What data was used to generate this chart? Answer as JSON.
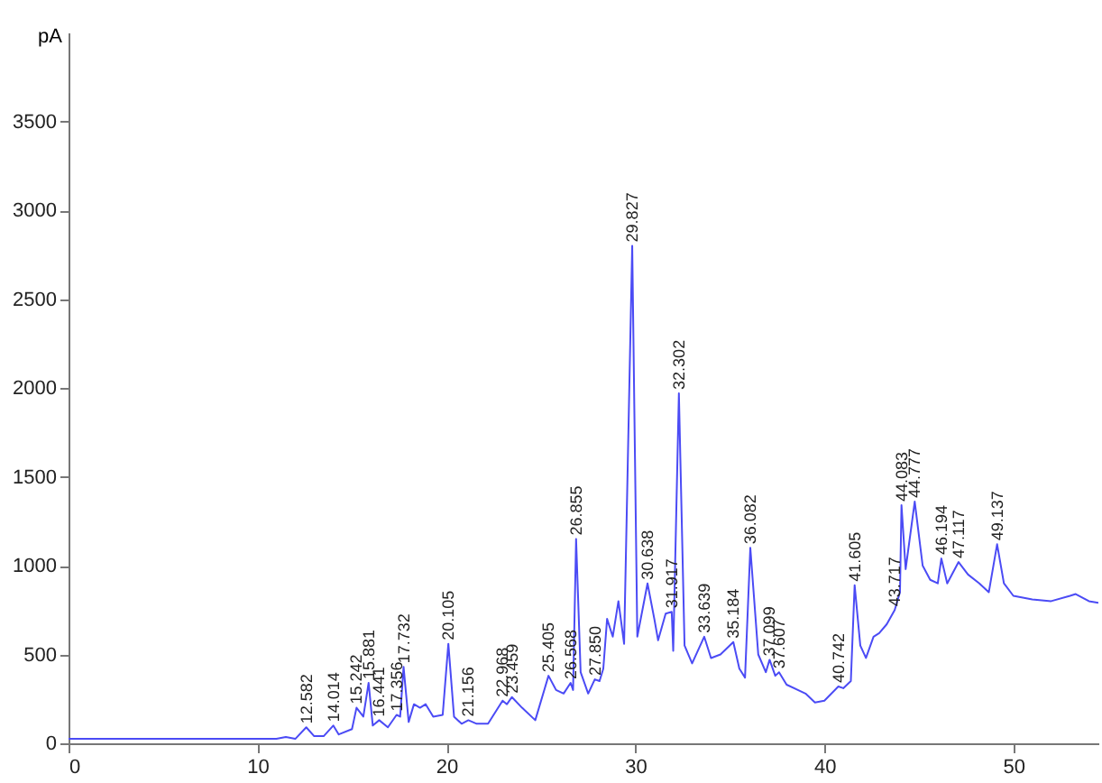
{
  "chart_data": {
    "type": "line",
    "ylabel": "pA",
    "xlim": [
      0,
      54.5
    ],
    "xticks": [
      0,
      10,
      20,
      30,
      40,
      50
    ],
    "ylim": [
      0,
      4000
    ],
    "yticks": [
      0,
      500,
      1000,
      1500,
      2000,
      2500,
      3000,
      3500
    ],
    "grid": false,
    "marker": "none",
    "line_style": "solid",
    "series": [
      {
        "color": "#4b4bf5",
        "x": [
          0,
          11,
          11.5,
          12,
          12.58,
          13,
          13.5,
          14.01,
          14.3,
          15,
          15.24,
          15.6,
          15.88,
          16.1,
          16.44,
          16.9,
          17.36,
          17.55,
          17.73,
          18,
          18.28,
          18.6,
          18.9,
          19.3,
          19.8,
          20.1,
          20.4,
          20.8,
          21.16,
          21.6,
          22.2,
          22.97,
          23.2,
          23.46,
          24,
          24.7,
          25.4,
          25.8,
          26.2,
          26.57,
          26.7,
          26.86,
          27.1,
          27.5,
          27.85,
          28.1,
          28.3,
          28.5,
          28.8,
          29.1,
          29.4,
          29.83,
          30.1,
          30.64,
          31,
          31.2,
          31.6,
          31.92,
          32,
          32.3,
          32.6,
          33,
          33.64,
          34,
          34.5,
          35.18,
          35.5,
          35.8,
          36.08,
          36.5,
          36.9,
          37.1,
          37.4,
          37.6,
          38,
          39,
          39.5,
          40,
          40.74,
          41,
          41.2,
          41.4,
          41.6,
          41.9,
          42.2,
          42.6,
          42.9,
          43.3,
          43.72,
          44,
          44.08,
          44.3,
          44.78,
          45.2,
          45.6,
          46,
          46.19,
          46.5,
          47.1,
          47.6,
          48.2,
          48.7,
          49.14,
          49.5,
          50,
          51,
          52,
          53,
          53.3,
          54,
          54.5
        ],
        "values": [
          25,
          25,
          35,
          25,
          90,
          40,
          40,
          100,
          50,
          80,
          200,
          150,
          340,
          100,
          130,
          90,
          160,
          150,
          430,
          120,
          220,
          200,
          220,
          150,
          160,
          560,
          150,
          110,
          130,
          110,
          110,
          240,
          220,
          260,
          200,
          130,
          380,
          300,
          280,
          340,
          300,
          1150,
          400,
          280,
          360,
          350,
          420,
          700,
          600,
          800,
          560,
          2800,
          600,
          900,
          700,
          580,
          730,
          740,
          520,
          1970,
          550,
          450,
          600,
          480,
          500,
          570,
          420,
          370,
          1100,
          500,
          400,
          470,
          380,
          400,
          330,
          280,
          230,
          240,
          320,
          310,
          330,
          350,
          890,
          550,
          480,
          600,
          620,
          670,
          750,
          850,
          1340,
          980,
          1360,
          1000,
          920,
          900,
          1040,
          900,
          1020,
          950,
          900,
          850,
          1120,
          900,
          830,
          810,
          800,
          830,
          840,
          800,
          790
        ]
      }
    ],
    "annotations": [
      {
        "text": "12.582",
        "x": 12.58,
        "y": 90
      },
      {
        "text": "14.014",
        "x": 14.01,
        "y": 100
      },
      {
        "text": "15.242",
        "x": 15.24,
        "y": 200
      },
      {
        "text": "15.881",
        "x": 15.88,
        "y": 340
      },
      {
        "text": "16.441",
        "x": 16.44,
        "y": 130
      },
      {
        "text": "17.356",
        "x": 17.36,
        "y": 160
      },
      {
        "text": "17.732",
        "x": 17.73,
        "y": 430
      },
      {
        "text": "20.105",
        "x": 20.1,
        "y": 560
      },
      {
        "text": "21.156",
        "x": 21.16,
        "y": 130
      },
      {
        "text": "22.968",
        "x": 22.97,
        "y": 240
      },
      {
        "text": "23.459",
        "x": 23.46,
        "y": 260
      },
      {
        "text": "25.405",
        "x": 25.4,
        "y": 380
      },
      {
        "text": "26.568",
        "x": 26.57,
        "y": 340
      },
      {
        "text": "26.855",
        "x": 26.86,
        "y": 1150
      },
      {
        "text": "27.850",
        "x": 27.85,
        "y": 360
      },
      {
        "text": "29.827",
        "x": 29.83,
        "y": 2800
      },
      {
        "text": "30.638",
        "x": 30.64,
        "y": 900
      },
      {
        "text": "31.917",
        "x": 31.92,
        "y": 740
      },
      {
        "text": "32.302",
        "x": 32.3,
        "y": 1970
      },
      {
        "text": "33.639",
        "x": 33.64,
        "y": 600
      },
      {
        "text": "35.184",
        "x": 35.18,
        "y": 570
      },
      {
        "text": "36.082",
        "x": 36.08,
        "y": 1100
      },
      {
        "text": "37.099",
        "x": 37.1,
        "y": 470
      },
      {
        "text": "37.607",
        "x": 37.6,
        "y": 400
      },
      {
        "text": "40.742",
        "x": 40.74,
        "y": 320
      },
      {
        "text": "41.605",
        "x": 41.6,
        "y": 890
      },
      {
        "text": "43.717",
        "x": 43.72,
        "y": 750
      },
      {
        "text": "44.083",
        "x": 44.08,
        "y": 1340
      },
      {
        "text": "44.777",
        "x": 44.78,
        "y": 1360
      },
      {
        "text": "46.194",
        "x": 46.19,
        "y": 1040
      },
      {
        "text": "47.117",
        "x": 47.1,
        "y": 1020
      },
      {
        "text": "49.137",
        "x": 49.14,
        "y": 1120
      }
    ]
  }
}
